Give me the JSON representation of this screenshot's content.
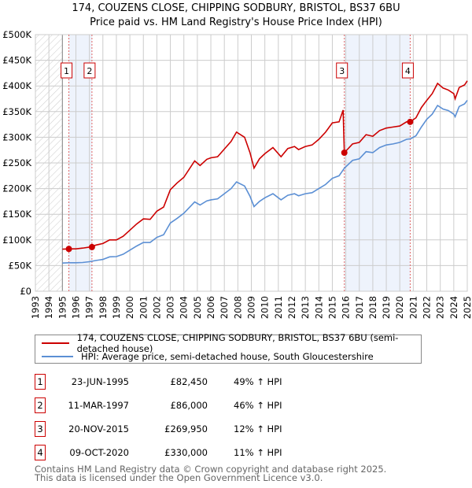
{
  "title_line1": "174, COUZENS CLOSE, CHIPPING SODBURY, BRISTOL, BS37 6BU",
  "title_line2": "Price paid vs. HM Land Registry's House Price Index (HPI)",
  "chart_data": {
    "type": "line",
    "title": "174, COUZENS CLOSE, CHIPPING SODBURY, BRISTOL, BS37 6BU — Price paid vs. HM Land Registry's House Price Index (HPI)",
    "xlim": [
      1993,
      2025
    ],
    "ylim": [
      0,
      500000
    ],
    "x_ticks": [
      "1993",
      "1994",
      "1995",
      "1996",
      "1997",
      "1998",
      "1999",
      "2000",
      "2001",
      "2002",
      "2003",
      "2004",
      "2005",
      "2006",
      "2007",
      "2008",
      "2009",
      "2010",
      "2011",
      "2012",
      "2013",
      "2014",
      "2015",
      "2016",
      "2017",
      "2018",
      "2019",
      "2020",
      "2021",
      "2022",
      "2023",
      "2024",
      "2025"
    ],
    "y_ticks": [
      {
        "v": 0,
        "label": "£0"
      },
      {
        "v": 50000,
        "label": "£50K"
      },
      {
        "v": 100000,
        "label": "£100K"
      },
      {
        "v": 150000,
        "label": "£150K"
      },
      {
        "v": 200000,
        "label": "£200K"
      },
      {
        "v": 250000,
        "label": "£250K"
      },
      {
        "v": 300000,
        "label": "£300K"
      },
      {
        "v": 350000,
        "label": "£350K"
      },
      {
        "v": 400000,
        "label": "£400K"
      },
      {
        "v": 450000,
        "label": "£450K"
      },
      {
        "v": 500000,
        "label": "£500K"
      }
    ],
    "grid": true,
    "hatched_before": 1995,
    "shaded_ranges": [
      [
        1995.48,
        1997.19
      ],
      [
        2015.89,
        2020.77
      ]
    ],
    "series": [
      {
        "name": "174, COUZENS CLOSE, CHIPPING SODBURY, BRISTOL, BS37 6BU (semi-detached house)",
        "color": "#cc0000",
        "x": [
          1995.0,
          1995.5,
          1996.0,
          1996.5,
          1997.0,
          1997.5,
          1998.0,
          1998.5,
          1999.0,
          1999.5,
          2000.0,
          2000.5,
          2001.0,
          2001.5,
          2002.0,
          2002.5,
          2003.0,
          2003.5,
          2004.0,
          2004.8,
          2005.2,
          2005.7,
          2006.0,
          2006.5,
          2007.0,
          2007.5,
          2007.9,
          2008.5,
          2008.9,
          2009.2,
          2009.6,
          2010.0,
          2010.6,
          2011.2,
          2011.7,
          2012.2,
          2012.5,
          2013.0,
          2013.5,
          2014.0,
          2014.5,
          2015.0,
          2015.5,
          2015.8,
          2015.89,
          2016.5,
          2017.0,
          2017.5,
          2018.0,
          2018.5,
          2019.0,
          2019.5,
          2020.0,
          2020.5,
          2020.77,
          2021.2,
          2021.6,
          2022.0,
          2022.4,
          2022.8,
          2023.2,
          2023.6,
          2024.0,
          2024.1,
          2024.4,
          2024.8,
          2025.0
        ],
        "y": [
          82000,
          82500,
          82500,
          84000,
          86000,
          90000,
          93000,
          100000,
          100000,
          107000,
          119000,
          131000,
          141000,
          140000,
          156000,
          164000,
          198000,
          211000,
          222000,
          254000,
          245000,
          257000,
          260000,
          262000,
          277000,
          292000,
          310000,
          300000,
          270000,
          240000,
          258000,
          268000,
          280000,
          262000,
          278000,
          282000,
          276000,
          282000,
          285000,
          296000,
          310000,
          328000,
          330000,
          353000,
          269950,
          287000,
          290000,
          305000,
          302000,
          313000,
          318000,
          320000,
          322000,
          330000,
          330000,
          338000,
          358000,
          372000,
          385000,
          405000,
          396000,
          392000,
          385000,
          375000,
          397000,
          402000,
          410000
        ]
      },
      {
        "name": "HPI: Average price, semi-detached house, South Gloucestershire",
        "color": "#5b8fd4",
        "x": [
          1995.0,
          1995.5,
          1996.0,
          1996.5,
          1997.0,
          1997.5,
          1998.0,
          1998.5,
          1999.0,
          1999.5,
          2000.0,
          2000.5,
          2001.0,
          2001.5,
          2002.0,
          2002.5,
          2003.0,
          2003.5,
          2004.0,
          2004.8,
          2005.2,
          2005.7,
          2006.0,
          2006.5,
          2007.0,
          2007.5,
          2007.9,
          2008.5,
          2008.9,
          2009.2,
          2009.6,
          2010.0,
          2010.6,
          2011.2,
          2011.7,
          2012.2,
          2012.5,
          2013.0,
          2013.5,
          2014.0,
          2014.5,
          2015.0,
          2015.5,
          2015.9,
          2016.5,
          2017.0,
          2017.5,
          2018.0,
          2018.5,
          2019.0,
          2019.5,
          2020.0,
          2020.5,
          2020.8,
          2021.2,
          2021.6,
          2022.0,
          2022.4,
          2022.8,
          2023.2,
          2023.6,
          2024.0,
          2024.1,
          2024.4,
          2024.8,
          2025.0
        ],
        "y": [
          55000,
          55500,
          55500,
          56000,
          57500,
          60000,
          62000,
          67000,
          67500,
          72000,
          80000,
          88000,
          95000,
          95000,
          105000,
          110000,
          133000,
          142000,
          152000,
          174000,
          168000,
          176000,
          178000,
          180000,
          190000,
          200000,
          213000,
          205000,
          185000,
          165000,
          175000,
          182000,
          190000,
          178000,
          187000,
          190000,
          186000,
          190000,
          192000,
          200000,
          208000,
          220000,
          225000,
          240000,
          255000,
          258000,
          272000,
          270000,
          280000,
          285000,
          287000,
          290000,
          296000,
          297000,
          303000,
          320000,
          335000,
          345000,
          362000,
          355000,
          352000,
          345000,
          340000,
          360000,
          365000,
          372000
        ]
      }
    ],
    "sales": [
      {
        "label": "1",
        "x": 1995.48,
        "y": 82450
      },
      {
        "label": "2",
        "x": 1997.19,
        "y": 86000
      },
      {
        "label": "3",
        "x": 2015.89,
        "y": 269950
      },
      {
        "label": "4",
        "x": 2020.77,
        "y": 330000
      }
    ]
  },
  "legend": {
    "property": "174, COUZENS CLOSE, CHIPPING SODBURY, BRISTOL, BS37 6BU (semi-detached house)",
    "hpi": "HPI: Average price, semi-detached house, South Gloucestershire"
  },
  "transactions": [
    {
      "num": "1",
      "date": "23-JUN-1995",
      "price": "£82,450",
      "hpi": "49% ↑ HPI"
    },
    {
      "num": "2",
      "date": "11-MAR-1997",
      "price": "£86,000",
      "hpi": "46% ↑ HPI"
    },
    {
      "num": "3",
      "date": "20-NOV-2015",
      "price": "£269,950",
      "hpi": "12% ↑ HPI"
    },
    {
      "num": "4",
      "date": "09-OCT-2020",
      "price": "£330,000",
      "hpi": "11% ↑ HPI"
    }
  ],
  "footer": {
    "line1": "Contains HM Land Registry data © Crown copyright and database right 2025.",
    "line2": "This data is licensed under the Open Government Licence v3.0."
  }
}
